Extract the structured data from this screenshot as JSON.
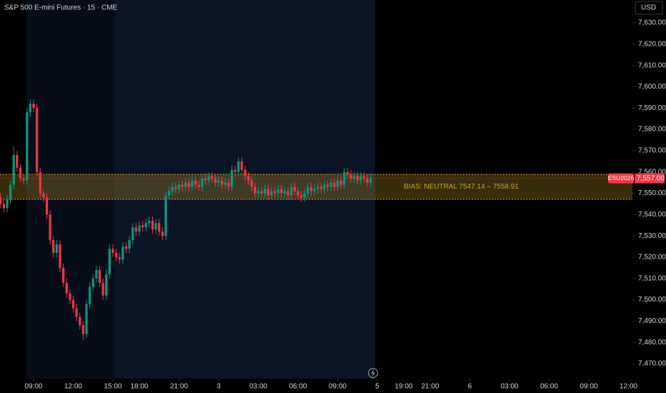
{
  "chart_data": {
    "type": "candlestick",
    "title": "S&P 500 E-mini Futures · 15 · CME",
    "currency": "USD",
    "symbol": "ESU2026",
    "up_color": "#089981",
    "down_color": "#f23645",
    "grid": false,
    "x": [
      0,
      1,
      2,
      3,
      4,
      5,
      6,
      7,
      8,
      9,
      10,
      11,
      12,
      13,
      14,
      15,
      16,
      17,
      18,
      19,
      20,
      21,
      22,
      23,
      24,
      25,
      26,
      27,
      28,
      29,
      30,
      31,
      32,
      33,
      34,
      35,
      36,
      37,
      38,
      39,
      40,
      41,
      42,
      43,
      44,
      45,
      46,
      47,
      48,
      49,
      50,
      51,
      52,
      53,
      54,
      55,
      56,
      57,
      58,
      59,
      60,
      61,
      62,
      63,
      64,
      65,
      66,
      67,
      68,
      69,
      70,
      71,
      72,
      73,
      74,
      75,
      76,
      77,
      78,
      79,
      80,
      81,
      82,
      83,
      84,
      85,
      86,
      87,
      88,
      89,
      90,
      91,
      92,
      93,
      94,
      95,
      96,
      97,
      98,
      99,
      100,
      101,
      102,
      103,
      104,
      105,
      106,
      107,
      108,
      109,
      110,
      111,
      112
    ],
    "open": [
      7548,
      7545,
      7543,
      7547,
      7554,
      7568,
      7562,
      7557,
      7556,
      7588,
      7592,
      7590,
      7560,
      7550,
      7548,
      7540,
      7528,
      7522,
      7526,
      7515,
      7508,
      7503,
      7500,
      7496,
      7492,
      7488,
      7484,
      7498,
      7506,
      7510,
      7514,
      7508,
      7502,
      7512,
      7524,
      7522,
      7520,
      7519,
      7525,
      7524,
      7528,
      7534,
      7532,
      7535,
      7534,
      7536,
      7537,
      7533,
      7536,
      7532,
      7530,
      7549,
      7551,
      7553,
      7552,
      7554,
      7553,
      7555,
      7553,
      7556,
      7554,
      7553,
      7557,
      7556,
      7558,
      7557,
      7555,
      7556,
      7554,
      7555,
      7553,
      7561,
      7560,
      7565,
      7561,
      7558,
      7556,
      7553,
      7550,
      7551,
      7550,
      7552,
      7549,
      7551,
      7550,
      7552,
      7550,
      7551,
      7549,
      7553,
      7551,
      7549,
      7548,
      7550,
      7553,
      7551,
      7552,
      7553,
      7552,
      7554,
      7553,
      7555,
      7553,
      7556,
      7554,
      7560,
      7559,
      7557,
      7558,
      7556,
      7558,
      7557,
      7555
    ],
    "high": [
      7550,
      7547,
      7549,
      7556,
      7572,
      7570,
      7564,
      7559,
      7590,
      7594,
      7594,
      7592,
      7562,
      7552,
      7550,
      7542,
      7530,
      7528,
      7528,
      7517,
      7510,
      7505,
      7502,
      7498,
      7494,
      7490,
      7500,
      7508,
      7512,
      7516,
      7516,
      7510,
      7514,
      7526,
      7526,
      7524,
      7522,
      7527,
      7527,
      7530,
      7536,
      7536,
      7537,
      7537,
      7538,
      7539,
      7539,
      7538,
      7538,
      7534,
      7551,
      7553,
      7555,
      7555,
      7556,
      7556,
      7557,
      7557,
      7558,
      7558,
      7556,
      7559,
      7559,
      7560,
      7560,
      7559,
      7558,
      7558,
      7557,
      7557,
      7563,
      7563,
      7567,
      7567,
      7563,
      7560,
      7558,
      7555,
      7553,
      7553,
      7554,
      7554,
      7553,
      7553,
      7554,
      7554,
      7553,
      7553,
      7555,
      7555,
      7553,
      7551,
      7552,
      7555,
      7555,
      7554,
      7555,
      7555,
      7556,
      7556,
      7557,
      7557,
      7558,
      7558,
      7562,
      7562,
      7561,
      7560,
      7560,
      7560,
      7560,
      7559,
      7559
    ],
    "low": [
      7543,
      7541,
      7541,
      7545,
      7552,
      7560,
      7555,
      7554,
      7554,
      7586,
      7588,
      7558,
      7548,
      7546,
      7538,
      7526,
      7520,
      7520,
      7513,
      7506,
      7501,
      7498,
      7494,
      7490,
      7486,
      7481,
      7482,
      7496,
      7504,
      7508,
      7506,
      7500,
      7500,
      7510,
      7520,
      7518,
      7517,
      7517,
      7522,
      7522,
      7526,
      7530,
      7530,
      7532,
      7532,
      7534,
      7531,
      7531,
      7530,
      7528,
      7528,
      7547,
      7549,
      7550,
      7550,
      7551,
      7551,
      7551,
      7551,
      7552,
      7551,
      7551,
      7554,
      7554,
      7555,
      7553,
      7553,
      7552,
      7552,
      7551,
      7551,
      7558,
      7558,
      7559,
      7556,
      7554,
      7551,
      7548,
      7548,
      7548,
      7548,
      7547,
      7547,
      7548,
      7548,
      7548,
      7548,
      7547,
      7547,
      7549,
      7547,
      7546,
      7546,
      7548,
      7549,
      7549,
      7550,
      7550,
      7550,
      7551,
      7551,
      7551,
      7551,
      7552,
      7552,
      7557,
      7555,
      7555,
      7554,
      7554,
      7555,
      7553,
      7553
    ],
    "close": [
      7545,
      7543,
      7547,
      7554,
      7568,
      7562,
      7557,
      7556,
      7588,
      7592,
      7590,
      7560,
      7550,
      7548,
      7540,
      7528,
      7522,
      7526,
      7515,
      7508,
      7503,
      7500,
      7496,
      7492,
      7488,
      7484,
      7498,
      7506,
      7510,
      7514,
      7508,
      7502,
      7512,
      7524,
      7522,
      7520,
      7519,
      7525,
      7524,
      7528,
      7534,
      7532,
      7535,
      7534,
      7536,
      7537,
      7533,
      7536,
      7532,
      7530,
      7549,
      7551,
      7553,
      7552,
      7554,
      7553,
      7555,
      7553,
      7556,
      7554,
      7553,
      7557,
      7556,
      7558,
      7557,
      7555,
      7556,
      7554,
      7555,
      7553,
      7561,
      7560,
      7565,
      7561,
      7558,
      7556,
      7553,
      7550,
      7551,
      7550,
      7552,
      7549,
      7551,
      7550,
      7552,
      7550,
      7551,
      7549,
      7553,
      7551,
      7549,
      7548,
      7550,
      7553,
      7551,
      7552,
      7553,
      7552,
      7554,
      7553,
      7555,
      7553,
      7556,
      7554,
      7560,
      7559,
      7557,
      7558,
      7556,
      7558,
      7557,
      7555,
      7557
    ],
    "xlim": [
      -0.16,
      191.2
    ],
    "xticks": [
      {
        "value": 10,
        "label": "09:00"
      },
      {
        "value": 22,
        "label": "12:00"
      },
      {
        "value": 34,
        "label": "15:00"
      },
      {
        "value": 42,
        "label": "18:00"
      },
      {
        "value": 54,
        "label": "21:00"
      },
      {
        "value": 66,
        "label": "3"
      },
      {
        "value": 78,
        "label": "03:00"
      },
      {
        "value": 90,
        "label": "06:00"
      },
      {
        "value": 102,
        "label": "09:00"
      },
      {
        "value": 114,
        "label": "5"
      },
      {
        "value": 122,
        "label": "19:00"
      },
      {
        "value": 130,
        "label": "21:00"
      },
      {
        "value": 142,
        "label": "6"
      },
      {
        "value": 154,
        "label": "03:00"
      },
      {
        "value": 166,
        "label": "06:00"
      },
      {
        "value": 178,
        "label": "09:00"
      },
      {
        "value": 190,
        "label": "12:00"
      }
    ],
    "ylim": [
      7462.96,
      7640.73
    ],
    "yticks": [
      {
        "value": 7470,
        "label": "7,470.00"
      },
      {
        "value": 7480,
        "label": "7,480.00"
      },
      {
        "value": 7490,
        "label": "7,490.00"
      },
      {
        "value": 7500,
        "label": "7,500.00"
      },
      {
        "value": 7510,
        "label": "7,510.00"
      },
      {
        "value": 7520,
        "label": "7,520.00"
      },
      {
        "value": 7530,
        "label": "7,530.00"
      },
      {
        "value": 7540,
        "label": "7,540.00"
      },
      {
        "value": 7550,
        "label": "7,550.00"
      },
      {
        "value": 7560,
        "label": "7,560.00"
      },
      {
        "value": 7570,
        "label": "7,570.00"
      },
      {
        "value": 7580,
        "label": "7,580.00"
      },
      {
        "value": 7590,
        "label": "7,590.00"
      },
      {
        "value": 7600,
        "label": "7,600.00"
      },
      {
        "value": 7610,
        "label": "7,610.00"
      },
      {
        "value": 7620,
        "label": "7,620.00"
      },
      {
        "value": 7630,
        "label": "7,630.00"
      }
    ],
    "last_price": {
      "value": 7557,
      "label": "7,557.00"
    },
    "zone": {
      "low": 7547.14,
      "high": 7558.91,
      "label": "BIAS: NEUTRAL 7547.14 – 7558.91",
      "color": "#c9a227"
    }
  }
}
